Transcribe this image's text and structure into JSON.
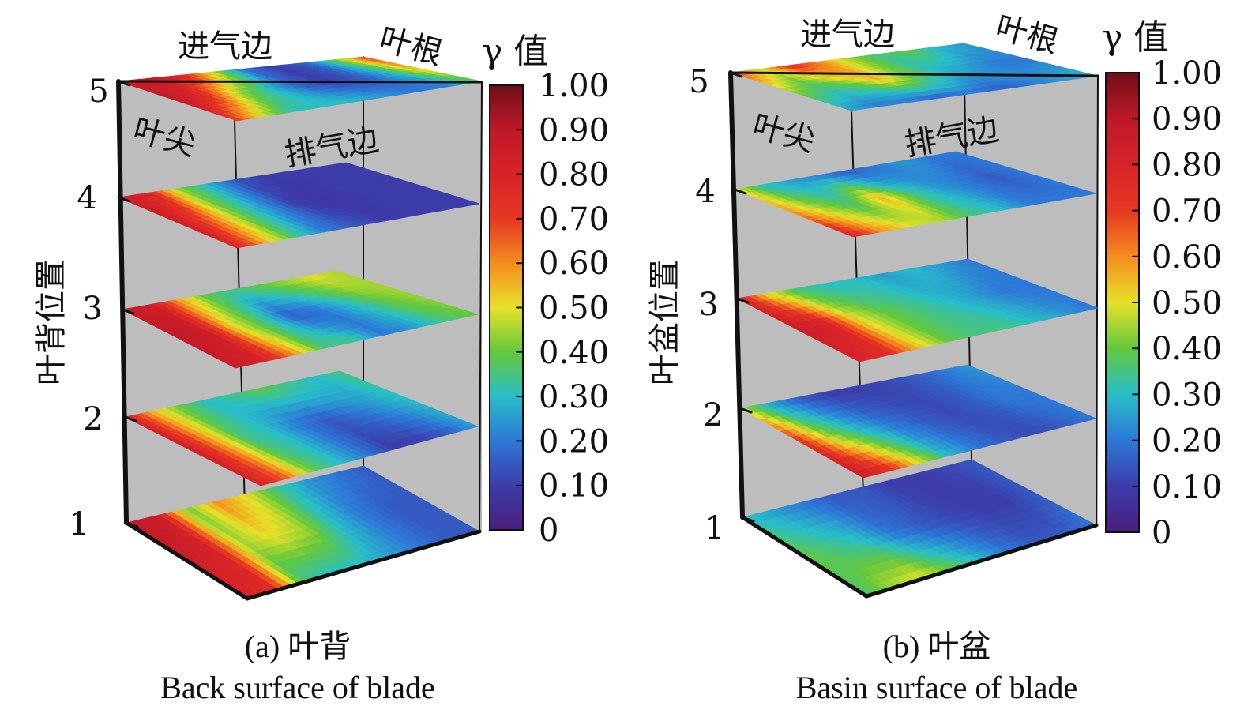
{
  "chart_data": [
    {
      "type": "heatmap",
      "caption_cn": "(a) 叶背",
      "caption_en": "Back surface of blade",
      "ylabel": "叶背位置",
      "y_ticks": [
        "1",
        "2",
        "3",
        "4",
        "5"
      ],
      "edge_labels": {
        "inlet": "进气边",
        "root": "叶根",
        "tip": "叶尖",
        "outlet": "排气边"
      },
      "colorbar": {
        "label": "γ 值",
        "range": [
          0,
          1
        ],
        "ticks": [
          "1.00",
          "0.90",
          "0.80",
          "0.70",
          "0.60",
          "0.50",
          "0.40",
          "0.30",
          "0.20",
          "0.10",
          "0"
        ]
      },
      "layers": [
        {
          "position": 5,
          "grid": [
            [
              0.85,
              0.9,
              0.8,
              0.5,
              0.2,
              0.1,
              0.15,
              0.4,
              0.7
            ],
            [
              0.9,
              0.75,
              0.45,
              0.3,
              0.15,
              0.1,
              0.15,
              0.3,
              0.55
            ],
            [
              0.7,
              0.45,
              0.3,
              0.3,
              0.3,
              0.25,
              0.2,
              0.2,
              0.35
            ]
          ]
        },
        {
          "position": 4,
          "grid": [
            [
              0.85,
              0.8,
              0.45,
              0.3,
              0.15,
              0.1,
              0.1,
              0.1,
              0.1
            ],
            [
              0.85,
              0.65,
              0.4,
              0.25,
              0.1,
              0.08,
              0.1,
              0.1,
              0.1
            ],
            [
              0.8,
              0.55,
              0.35,
              0.2,
              0.15,
              0.1,
              0.1,
              0.1,
              0.1
            ]
          ]
        },
        {
          "position": 3,
          "grid": [
            [
              0.85,
              0.85,
              0.6,
              0.4,
              0.35,
              0.4,
              0.45,
              0.5,
              0.45
            ],
            [
              0.9,
              0.85,
              0.5,
              0.35,
              0.15,
              0.2,
              0.3,
              0.4,
              0.45
            ],
            [
              0.85,
              0.8,
              0.6,
              0.35,
              0.35,
              0.2,
              0.25,
              0.35,
              0.4
            ]
          ]
        },
        {
          "position": 2,
          "grid": [
            [
              0.8,
              0.55,
              0.4,
              0.3,
              0.35,
              0.4,
              0.35,
              0.3,
              0.35
            ],
            [
              0.85,
              0.6,
              0.35,
              0.3,
              0.2,
              0.15,
              0.2,
              0.25,
              0.3
            ],
            [
              0.8,
              0.65,
              0.4,
              0.3,
              0.2,
              0.1,
              0.1,
              0.15,
              0.25
            ]
          ]
        },
        {
          "position": 1,
          "grid": [
            [
              0.9,
              0.85,
              0.4,
              0.6,
              0.5,
              0.35,
              0.25,
              0.2,
              0.15
            ],
            [
              0.85,
              0.8,
              0.45,
              0.5,
              0.45,
              0.3,
              0.2,
              0.15,
              0.15
            ],
            [
              0.8,
              0.75,
              0.35,
              0.3,
              0.3,
              0.25,
              0.2,
              0.15,
              0.15
            ]
          ]
        }
      ]
    },
    {
      "type": "heatmap",
      "caption_cn": "(b) 叶盆",
      "caption_en": "Basin surface of blade",
      "ylabel": "叶盆位置",
      "y_ticks": [
        "1",
        "2",
        "3",
        "4",
        "5"
      ],
      "edge_labels": {
        "inlet": "进气边",
        "root": "叶根",
        "tip": "叶尖",
        "outlet": "排气边"
      },
      "colorbar": {
        "label": "γ 值",
        "range": [
          0,
          1
        ],
        "ticks": [
          "1.00",
          "0.90",
          "0.80",
          "0.70",
          "0.60",
          "0.50",
          "0.40",
          "0.30",
          "0.20",
          "0.10",
          "0"
        ]
      },
      "layers": [
        {
          "position": 5,
          "grid": [
            [
              0.7,
              0.5,
              0.75,
              0.6,
              0.45,
              0.35,
              0.4,
              0.3,
              0.25
            ],
            [
              0.45,
              0.35,
              0.4,
              0.55,
              0.4,
              0.3,
              0.25,
              0.2,
              0.2
            ],
            [
              0.25,
              0.2,
              0.2,
              0.15,
              0.2,
              0.15,
              0.2,
              0.25,
              0.3
            ]
          ]
        },
        {
          "position": 4,
          "grid": [
            [
              0.5,
              0.3,
              0.25,
              0.2,
              0.15,
              0.2,
              0.25,
              0.2,
              0.2
            ],
            [
              0.6,
              0.45,
              0.35,
              0.55,
              0.35,
              0.25,
              0.2,
              0.15,
              0.2
            ],
            [
              0.8,
              0.6,
              0.5,
              0.45,
              0.35,
              0.3,
              0.2,
              0.2,
              0.2
            ]
          ]
        },
        {
          "position": 3,
          "grid": [
            [
              0.8,
              0.5,
              0.35,
              0.3,
              0.3,
              0.25,
              0.3,
              0.25,
              0.2
            ],
            [
              0.85,
              0.8,
              0.5,
              0.4,
              0.35,
              0.3,
              0.25,
              0.2,
              0.2
            ],
            [
              0.8,
              0.75,
              0.55,
              0.4,
              0.35,
              0.35,
              0.3,
              0.25,
              0.2
            ]
          ]
        },
        {
          "position": 2,
          "grid": [
            [
              0.45,
              0.25,
              0.15,
              0.1,
              0.1,
              0.12,
              0.15,
              0.2,
              0.25
            ],
            [
              0.75,
              0.45,
              0.3,
              0.2,
              0.15,
              0.12,
              0.15,
              0.2,
              0.2
            ],
            [
              0.85,
              0.75,
              0.5,
              0.3,
              0.2,
              0.15,
              0.12,
              0.15,
              0.2
            ]
          ]
        },
        {
          "position": 1,
          "grid": [
            [
              0.3,
              0.25,
              0.2,
              0.15,
              0.15,
              0.1,
              0.1,
              0.12,
              0.15
            ],
            [
              0.4,
              0.35,
              0.3,
              0.2,
              0.15,
              0.12,
              0.1,
              0.1,
              0.15
            ],
            [
              0.35,
              0.45,
              0.5,
              0.4,
              0.3,
              0.2,
              0.15,
              0.15,
              0.2
            ]
          ]
        }
      ]
    }
  ]
}
